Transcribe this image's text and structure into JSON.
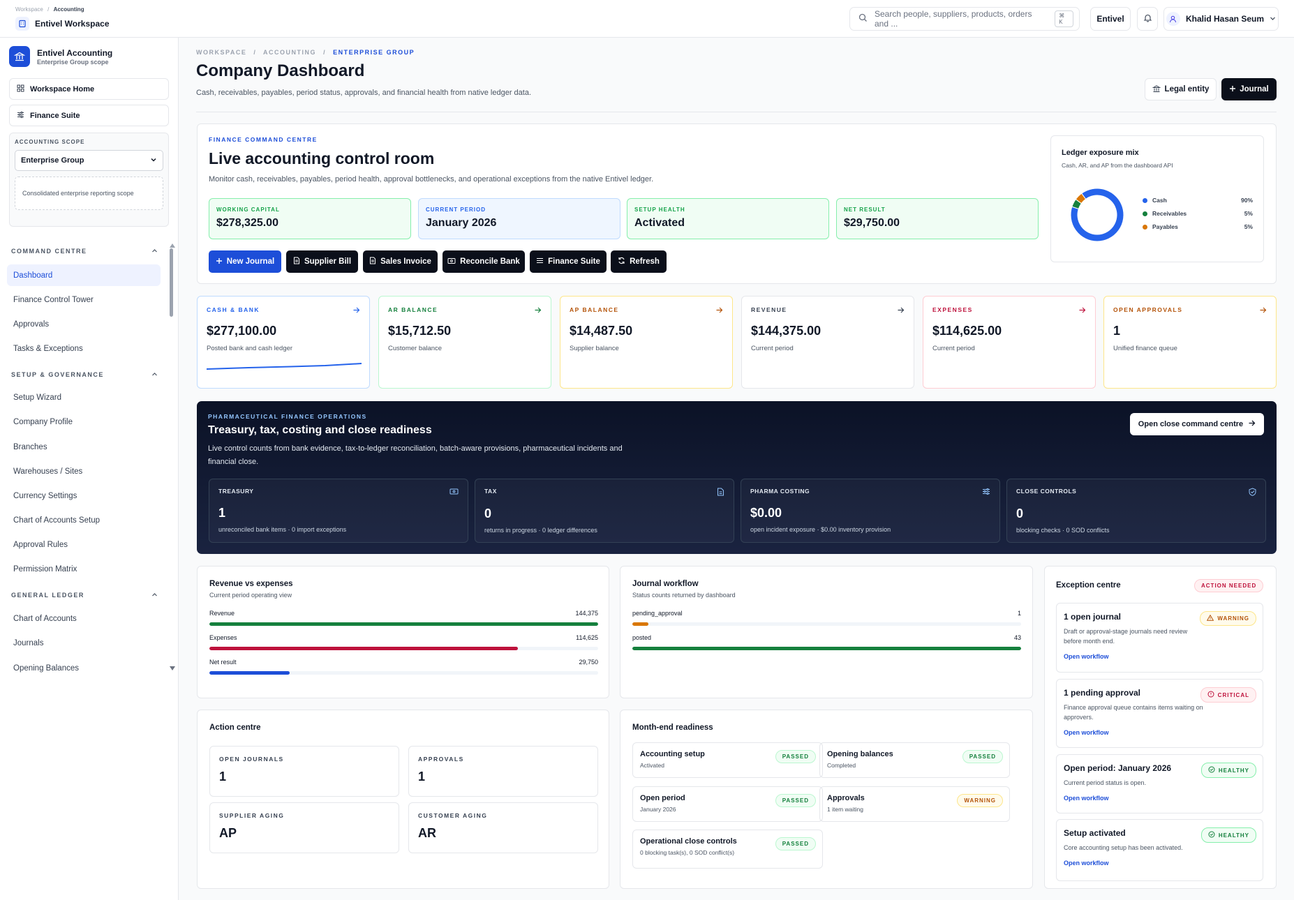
{
  "topbar": {
    "crumb_workspace": "Workspace",
    "crumb_sep": "/",
    "crumb_current": "Accounting",
    "workspace_name": "Entivel Workspace",
    "search_placeholder": "Search people, suppliers, products, orders and ...",
    "search_shortcut": "⌘ K",
    "org_label": "Entivel",
    "user_name": "Khalid Hasan Seum"
  },
  "sidebar": {
    "brand_title": "Entivel Accounting",
    "brand_sub": "Enterprise Group scope",
    "workspace_home": "Workspace Home",
    "finance_suite": "Finance Suite",
    "scope_label": "ACCOUNTING SCOPE",
    "scope_value": "Enterprise Group",
    "scope_note": "Consolidated enterprise reporting scope",
    "sections": [
      {
        "title": "COMMAND CENTRE",
        "items": [
          "Dashboard",
          "Finance Control Tower",
          "Approvals",
          "Tasks & Exceptions"
        ]
      },
      {
        "title": "SETUP & GOVERNANCE",
        "items": [
          "Setup Wizard",
          "Company Profile",
          "Branches",
          "Warehouses / Sites",
          "Currency Settings",
          "Chart of Accounts Setup",
          "Approval Rules",
          "Permission Matrix"
        ]
      },
      {
        "title": "GENERAL LEDGER",
        "items": [
          "Chart of Accounts",
          "Journals",
          "Opening Balances"
        ]
      }
    ],
    "active_item": "Dashboard"
  },
  "header": {
    "bc1": "WORKSPACE",
    "bc2": "ACCOUNTING",
    "bc3": "ENTERPRISE GROUP",
    "bc_sep": "/",
    "title": "Company Dashboard",
    "subtitle": "Cash, receivables, payables, period status, approvals, and financial health from native ledger data.",
    "legal_entity": "Legal entity",
    "journal": "Journal"
  },
  "hero": {
    "eyebrow": "FINANCE COMMAND CENTRE",
    "title": "Live accounting control room",
    "desc": "Monitor cash, receivables, payables, period health, approval bottlenecks, and operational exceptions from the native Entivel ledger.",
    "kpis": [
      {
        "label": "WORKING CAPITAL",
        "value": "$278,325.00",
        "accent": "#16a34a",
        "bg": "#f0fdf4",
        "border": "#86efac"
      },
      {
        "label": "CURRENT PERIOD",
        "value": "January 2026",
        "accent": "#2563eb",
        "bg": "#eff6ff",
        "border": "#bfdbfe"
      },
      {
        "label": "SETUP HEALTH",
        "value": "Activated",
        "accent": "#16a34a",
        "bg": "#f0fdf4",
        "border": "#86efac"
      },
      {
        "label": "NET RESULT",
        "value": "$29,750.00",
        "accent": "#16a34a",
        "bg": "#f0fdf4",
        "border": "#86efac"
      }
    ],
    "actions": [
      "New Journal",
      "Supplier Bill",
      "Sales Invoice",
      "Reconcile Bank",
      "Finance Suite",
      "Refresh"
    ]
  },
  "exposure": {
    "title": "Ledger exposure mix",
    "subtitle": "Cash, AR, and AP from the dashboard API",
    "slices": [
      {
        "name": "Cash",
        "pct_label": "90%",
        "value": 90,
        "color": "#2563eb"
      },
      {
        "name": "Receivables",
        "pct_label": "5%",
        "value": 5,
        "color": "#15803d"
      },
      {
        "name": "Payables",
        "pct_label": "5%",
        "value": 5,
        "color": "#d97706"
      }
    ]
  },
  "metrics": [
    {
      "label": "CASH & BANK",
      "value": "$277,100.00",
      "sub": "Posted bank and cash ledger",
      "color": "#2563eb",
      "border": "#bfdbfe",
      "arrow": "#2563eb"
    },
    {
      "label": "AR BALANCE",
      "value": "$15,712.50",
      "sub": "Customer balance",
      "color": "#15803d",
      "border": "#bbf7d0",
      "arrow": "#15803d"
    },
    {
      "label": "AP BALANCE",
      "value": "$14,487.50",
      "sub": "Supplier balance",
      "color": "#b45309",
      "border": "#fde68a",
      "arrow": "#b45309"
    },
    {
      "label": "REVENUE",
      "value": "$144,375.00",
      "sub": "Current period",
      "color": "#374151",
      "border": "#e5e7eb",
      "arrow": "#374151"
    },
    {
      "label": "EXPENSES",
      "value": "$114,625.00",
      "sub": "Current period",
      "color": "#be123c",
      "border": "#fecdd3",
      "arrow": "#be123c"
    },
    {
      "label": "OPEN APPROVALS",
      "value": "1",
      "sub": "Unified finance queue",
      "color": "#b45309",
      "border": "#fde68a",
      "arrow": "#b45309"
    }
  ],
  "pharma": {
    "eyebrow": "PHARMACEUTICAL FINANCE OPERATIONS",
    "title": "Treasury, tax, costing and close readiness",
    "desc": "Live control counts from bank evidence, tax-to-ledger reconciliation, batch-aware provisions, pharmaceutical incidents and financial close.",
    "button": "Open close command centre",
    "tiles": [
      {
        "label": "TREASURY",
        "value": "1",
        "sub": "unreconciled bank items · 0 import exceptions"
      },
      {
        "label": "TAX",
        "value": "0",
        "sub": "returns in progress · 0 ledger differences"
      },
      {
        "label": "PHARMA COSTING",
        "value": "$0.00",
        "sub": "open incident exposure · $0.00 inventory provision"
      },
      {
        "label": "CLOSE CONTROLS",
        "value": "0",
        "sub": "blocking checks · 0 SOD conflicts"
      }
    ]
  },
  "chart_data": [
    {
      "type": "bar",
      "title": "Revenue vs expenses",
      "subtitle": "Current period operating view",
      "categories": [
        "Revenue",
        "Expenses",
        "Net result"
      ],
      "values": [
        144375,
        114625,
        29750
      ],
      "value_labels": [
        "144,375",
        "114,625",
        "29,750"
      ],
      "colors": [
        "#15803d",
        "#be123c",
        "#1d4ed8"
      ],
      "xlim": [
        0,
        144375
      ]
    },
    {
      "type": "bar",
      "title": "Journal workflow",
      "subtitle": "Status counts returned by dashboard",
      "categories": [
        "pending_approval",
        "posted"
      ],
      "values": [
        1,
        43
      ],
      "value_labels": [
        "1",
        "43"
      ],
      "colors": [
        "#d97706",
        "#15803d"
      ],
      "xlim": [
        0,
        43
      ]
    }
  ],
  "action_centre": {
    "title": "Action centre",
    "tiles": [
      {
        "label": "OPEN JOURNALS",
        "value": "1"
      },
      {
        "label": "APPROVALS",
        "value": "1"
      },
      {
        "label": "SUPPLIER AGING",
        "value": "AP"
      },
      {
        "label": "CUSTOMER AGING",
        "value": "AR"
      }
    ]
  },
  "readiness": {
    "title": "Month-end readiness",
    "items": [
      {
        "title": "Accounting setup",
        "sub": "Activated",
        "status": "PASSED"
      },
      {
        "title": "Opening balances",
        "sub": "Completed",
        "status": "PASSED"
      },
      {
        "title": "Open period",
        "sub": "January 2026",
        "status": "PASSED"
      },
      {
        "title": "Approvals",
        "sub": "1 item waiting",
        "status": "WARNING"
      },
      {
        "title": "Operational close controls",
        "sub": "0 blocking task(s), 0 SOD conflict(s)",
        "status": "PASSED"
      }
    ]
  },
  "exceptions": {
    "title": "Exception centre",
    "badge": "ACTION NEEDED",
    "link": "Open workflow",
    "items": [
      {
        "title": "1 open journal",
        "desc": "Draft or approval-stage journals need review before month end.",
        "status": "WARNING"
      },
      {
        "title": "1 pending approval",
        "desc": "Finance approval queue contains items waiting on approvers.",
        "status": "CRITICAL"
      },
      {
        "title": "Open period: January 2026",
        "desc": "Current period status is open.",
        "status": "HEALTHY"
      },
      {
        "title": "Setup activated",
        "desc": "Core accounting setup has been activated.",
        "status": "HEALTHY"
      }
    ]
  }
}
